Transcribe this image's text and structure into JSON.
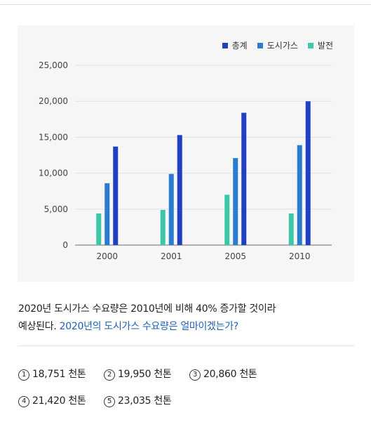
{
  "chart_data": {
    "type": "bar",
    "categories": [
      "2000",
      "2001",
      "2005",
      "2010"
    ],
    "series": [
      {
        "name": "발전",
        "color": "#3cc8a8",
        "values": [
          4400,
          4900,
          7000,
          4400
        ]
      },
      {
        "name": "도시가스",
        "color": "#2b7bd0",
        "values": [
          8600,
          9900,
          12100,
          13900
        ]
      },
      {
        "name": "총계",
        "color": "#1f3fc4",
        "values": [
          13700,
          15300,
          18400,
          20000
        ]
      }
    ],
    "legend_order": [
      "총계",
      "도시가스",
      "발전"
    ],
    "legend_position": "top-right",
    "yticks": [
      "25,000",
      "20,000",
      "15,000",
      "10,000",
      "5,000",
      "0"
    ],
    "ytick_values": [
      25000,
      20000,
      15000,
      10000,
      5000,
      0
    ],
    "ylim": [
      0,
      25000
    ],
    "grid": true
  },
  "question": {
    "line1": "2020년 도시가스 수요량은 2010년에 비해 40% 증가할 것이라",
    "line2_plain": "예상된다.",
    "line2_highlight": "2020년의 도시가스 수요량은 얼마이겠는가?"
  },
  "choices": [
    {
      "num": "1",
      "text": "18,751 천톤"
    },
    {
      "num": "2",
      "text": "19,950 천톤"
    },
    {
      "num": "3",
      "text": "20,860 천톤"
    },
    {
      "num": "4",
      "text": "21,420 천톤"
    },
    {
      "num": "5",
      "text": "23,035 천톤"
    }
  ]
}
